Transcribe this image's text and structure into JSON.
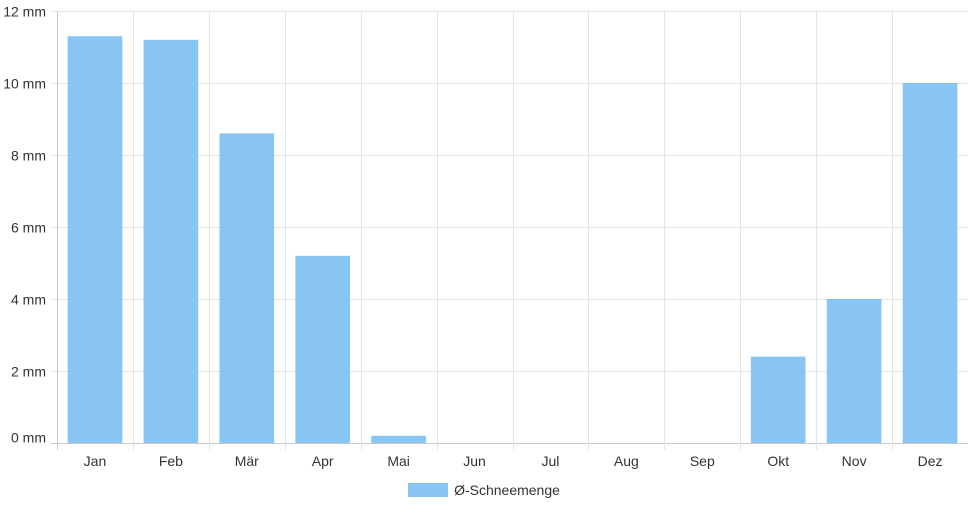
{
  "chart_data": {
    "type": "bar",
    "categories": [
      "Jan",
      "Feb",
      "Mär",
      "Apr",
      "Mai",
      "Jun",
      "Jul",
      "Aug",
      "Sep",
      "Okt",
      "Nov",
      "Dez"
    ],
    "series": [
      {
        "name": "Ø-Schneemenge",
        "values": [
          11.3,
          11.2,
          8.6,
          5.2,
          0.2,
          0,
          0,
          0,
          0,
          2.4,
          4.0,
          10.0
        ]
      }
    ],
    "yticks": [
      "0 mm",
      "2 mm",
      "4 mm",
      "6 mm",
      "8 mm",
      "10 mm",
      "12 mm"
    ],
    "ylim": [
      0,
      12
    ],
    "grid": true,
    "legend_position": "bottom-center",
    "colors": {
      "bar": "#88c5f2",
      "grid": "#e4e4e4",
      "axis": "#c8c8c8",
      "text": "#333333"
    }
  }
}
